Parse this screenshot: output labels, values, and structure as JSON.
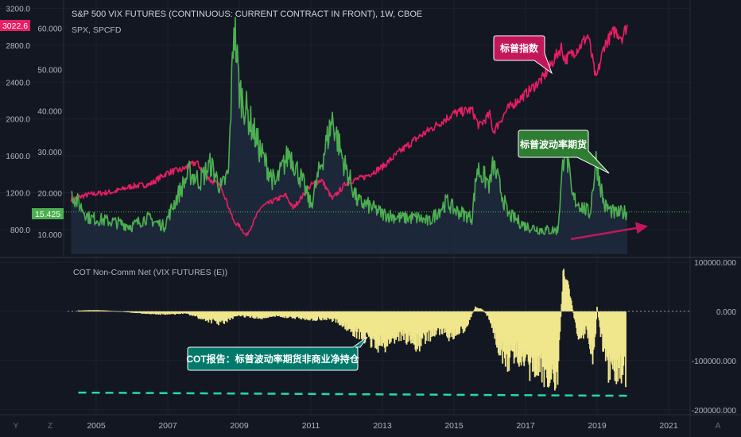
{
  "header": {
    "title": "S&P 500 VIX FUTURES (CONTINUOUS: CURRENT CONTRACT IN FRONT), 1W, CBOE",
    "overlay_symbol": "SPX, SPCFD",
    "lower_pane_title": "COT Non-Comm Net (VIX FUTURES (E))"
  },
  "badges": {
    "spx_last": "3022.6",
    "vix_last": "15.425"
  },
  "callouts": {
    "spx": "标普指数",
    "vix": "标普波动率期货",
    "cot": "COT报告：标普波动率期货非商业净持仓"
  },
  "bottom_bar": {
    "left_letters": [
      "Y",
      "Z"
    ],
    "right_letter": "A"
  },
  "colors": {
    "background": "#131722",
    "spx_line": "#e91e63",
    "vix_line": "#4caf50",
    "cot_bars": "#f0e68c",
    "dashed_support": "#26d9a8",
    "trend_arrow": "#c2185b",
    "callout_spx_bg": "#c2185b",
    "callout_vix_bg": "#2e7d32",
    "callout_cot_bg": "#00796b"
  },
  "chart_data": [
    {
      "type": "line",
      "title": "S&P 500 VIX FUTURES (CONTINUOUS: CURRENT CONTRACT IN FRONT), 1W, CBOE",
      "x_ticks": [
        "2005",
        "2007",
        "2009",
        "2011",
        "2013",
        "2015",
        "2017",
        "2019",
        "2021"
      ],
      "x_range": [
        2004.2,
        2021.6
      ],
      "left_axis": {
        "ticks": [
          "3200.0",
          "2800.0",
          "2400.0",
          "2000.0",
          "1600.0",
          "1200.0",
          "800.0"
        ],
        "range": [
          600,
          3240
        ]
      },
      "right_axis_labels_on_left": {
        "ticks": [
          "60.000",
          "50.000",
          "40.000",
          "30.000",
          "20.000",
          "10.000"
        ],
        "range": [
          6.7,
          65.7
        ]
      },
      "series": [
        {
          "name": "SPX, SPCFD",
          "axis": "left",
          "x": [
            2004.3,
            2004.8,
            2005.5,
            2006.0,
            2006.5,
            2007.0,
            2007.4,
            2007.8,
            2008.2,
            2008.5,
            2008.85,
            2009.0,
            2009.2,
            2009.6,
            2010.0,
            2010.3,
            2010.5,
            2011.0,
            2011.3,
            2011.6,
            2012.0,
            2012.5,
            2013.0,
            2013.5,
            2014.0,
            2014.5,
            2015.0,
            2015.5,
            2015.7,
            2016.0,
            2016.1,
            2016.5,
            2017.0,
            2017.5,
            2018.0,
            2018.1,
            2018.5,
            2018.75,
            2018.97,
            2019.2,
            2019.5,
            2019.7,
            2019.85
          ],
          "y": [
            1130,
            1180,
            1210,
            1270,
            1290,
            1420,
            1450,
            1530,
            1330,
            1270,
            880,
            840,
            730,
            1040,
            1120,
            1170,
            1030,
            1280,
            1340,
            1130,
            1310,
            1370,
            1480,
            1650,
            1800,
            1930,
            2060,
            2100,
            1920,
            2050,
            1860,
            2110,
            2270,
            2450,
            2780,
            2640,
            2780,
            2910,
            2420,
            2800,
            2960,
            2890,
            3022.6
          ]
        },
        {
          "name": "VIX Futures",
          "axis": "right",
          "x": [
            2004.3,
            2004.8,
            2005.5,
            2006.0,
            2006.4,
            2006.9,
            2007.2,
            2007.6,
            2007.9,
            2008.2,
            2008.5,
            2008.7,
            2008.85,
            2009.0,
            2009.2,
            2009.6,
            2010.0,
            2010.4,
            2010.8,
            2011.0,
            2011.6,
            2011.9,
            2012.3,
            2012.6,
            2013.0,
            2013.5,
            2014.0,
            2014.3,
            2014.8,
            2015.0,
            2015.5,
            2015.65,
            2016.0,
            2016.1,
            2016.5,
            2017.0,
            2017.5,
            2017.9,
            2018.1,
            2018.3,
            2018.8,
            2018.97,
            2019.2,
            2019.5,
            2019.85
          ],
          "y": [
            20,
            14,
            13,
            12,
            14,
            12,
            18,
            25,
            23,
            27,
            21,
            25,
            62,
            45,
            40,
            30,
            22,
            30,
            22,
            17,
            38,
            28,
            18,
            17,
            15,
            14,
            14,
            13,
            18,
            16,
            14,
            26,
            22,
            27,
            15,
            12,
            11,
            11,
            33,
            19,
            15,
            28,
            17,
            15,
            15.425
          ]
        }
      ]
    },
    {
      "type": "bar",
      "title": "COT Non-Comm Net (VIX FUTURES (E))",
      "axis": {
        "ticks": [
          "100000.000",
          "0.000",
          "-100000.000",
          "-200000.000"
        ],
        "range": [
          -210000,
          100000
        ]
      },
      "x_range": [
        2004.2,
        2021.6
      ],
      "series": [
        {
          "name": "COT Non-Comm Net (VIX FUTURES (E))",
          "x": [
            2004.5,
            2005.0,
            2005.5,
            2006.0,
            2006.5,
            2007.0,
            2007.5,
            2008.0,
            2008.5,
            2009.0,
            2009.5,
            2010.0,
            2010.5,
            2011.0,
            2011.5,
            2012.0,
            2012.5,
            2013.0,
            2013.5,
            2014.0,
            2014.5,
            2015.0,
            2015.3,
            2015.6,
            2015.8,
            2016.0,
            2016.4,
            2016.8,
            2017.0,
            2017.3,
            2017.6,
            2017.9,
            2018.05,
            2018.2,
            2018.5,
            2018.7,
            2018.9,
            2019.0,
            2019.2,
            2019.4,
            2019.6,
            2019.8
          ],
          "y": [
            2000,
            3000,
            1000,
            -3000,
            -6000,
            -8000,
            -5000,
            -20000,
            -30000,
            -10000,
            -18000,
            -12000,
            -15000,
            -20000,
            -18000,
            -40000,
            -70000,
            -90000,
            -60000,
            -85000,
            -50000,
            -65000,
            -45000,
            10000,
            5000,
            -20000,
            -130000,
            -110000,
            -145000,
            -150000,
            -160000,
            -170000,
            95000,
            60000,
            -80000,
            -40000,
            -130000,
            10000,
            -120000,
            -175000,
            -150000,
            -160000
          ]
        }
      ],
      "reference_line_level": -165000
    }
  ]
}
